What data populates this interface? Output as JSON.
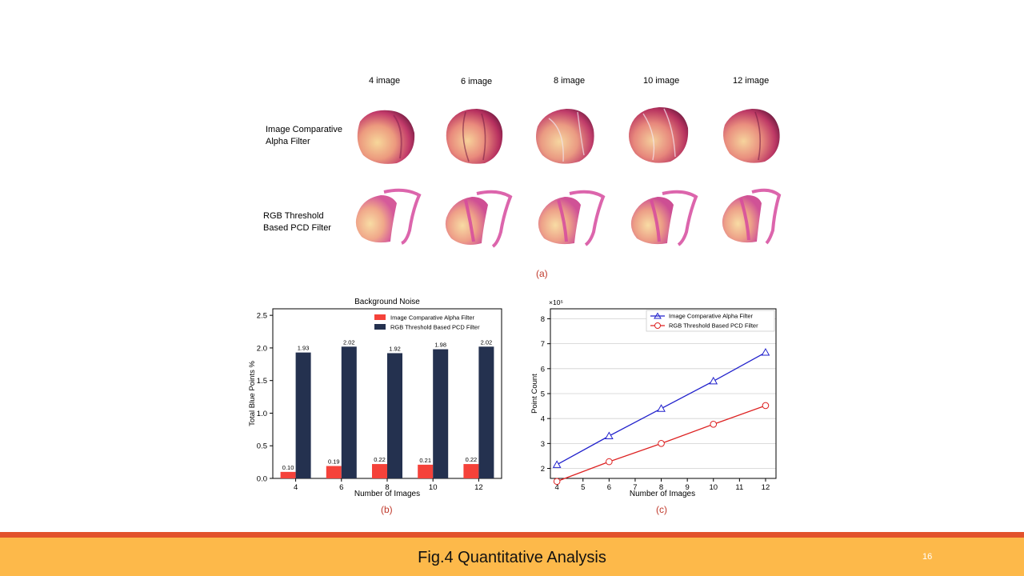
{
  "panel_a": {
    "columns": [
      "4 image",
      "6 image",
      "8 image",
      "10 image",
      "12 image"
    ],
    "rows": [
      {
        "line1": "Image Comparative",
        "line2": "Alpha Filter"
      },
      {
        "line1": "RGB Threshold",
        "line2": "Based PCD Filter"
      }
    ],
    "caption": "(a)"
  },
  "caption_b": "(b)",
  "caption_c": "(c)",
  "footer": {
    "title": "Fig.4 Quantitative Analysis",
    "page": "16"
  },
  "colors": {
    "red_bar": "#f5423a",
    "navy_bar": "#24314f",
    "blue_line": "#2222cc",
    "red_line": "#dd2222",
    "footer_band": "#fdb94a",
    "footer_line": "#e2522c"
  },
  "chart_data": [
    {
      "type": "bar",
      "title": "Background Noise",
      "xlabel": "Number of Images",
      "ylabel": "Total Blue Points %",
      "categories": [
        "4",
        "6",
        "8",
        "10",
        "12"
      ],
      "ylim": [
        0,
        2.6
      ],
      "yticks": [
        "0.0",
        "0.5",
        "1.0",
        "1.5",
        "2.0",
        "2.5"
      ],
      "series": [
        {
          "name": "Image Comparative Alpha Filter",
          "values": [
            0.1,
            0.19,
            0.22,
            0.21,
            0.22
          ],
          "labels": [
            "0.10",
            "0.19",
            "0.22",
            "0.21",
            "0.22"
          ]
        },
        {
          "name": "RGB Threshold Based PCD Filter",
          "values": [
            1.93,
            2.02,
            1.92,
            1.98,
            2.02
          ],
          "labels": [
            "1.93",
            "2.02",
            "1.92",
            "1.98",
            "2.02"
          ]
        }
      ],
      "legend": "top-right"
    },
    {
      "type": "line",
      "xlabel": "Number of Images",
      "ylabel": "Point Count",
      "scale_note": "×10⁵",
      "xticks": [
        "4",
        "5",
        "6",
        "7",
        "8",
        "9",
        "10",
        "11",
        "12"
      ],
      "yticks": [
        "2",
        "3",
        "4",
        "5",
        "6",
        "7",
        "8"
      ],
      "xlim": [
        3.75,
        12.4
      ],
      "ylim": [
        1.6,
        8.4
      ],
      "x": [
        4,
        6,
        8,
        10,
        12
      ],
      "series": [
        {
          "name": "Image Comparative Alpha Filter",
          "values": [
            2.15,
            3.3,
            4.4,
            5.5,
            6.65
          ],
          "marker": "triangle"
        },
        {
          "name": "RGB Threshold Based PCD Filter",
          "values": [
            1.48,
            2.27,
            3.0,
            3.77,
            4.52
          ],
          "marker": "circle"
        }
      ],
      "grid": "horizontal",
      "legend": "top-right"
    }
  ]
}
